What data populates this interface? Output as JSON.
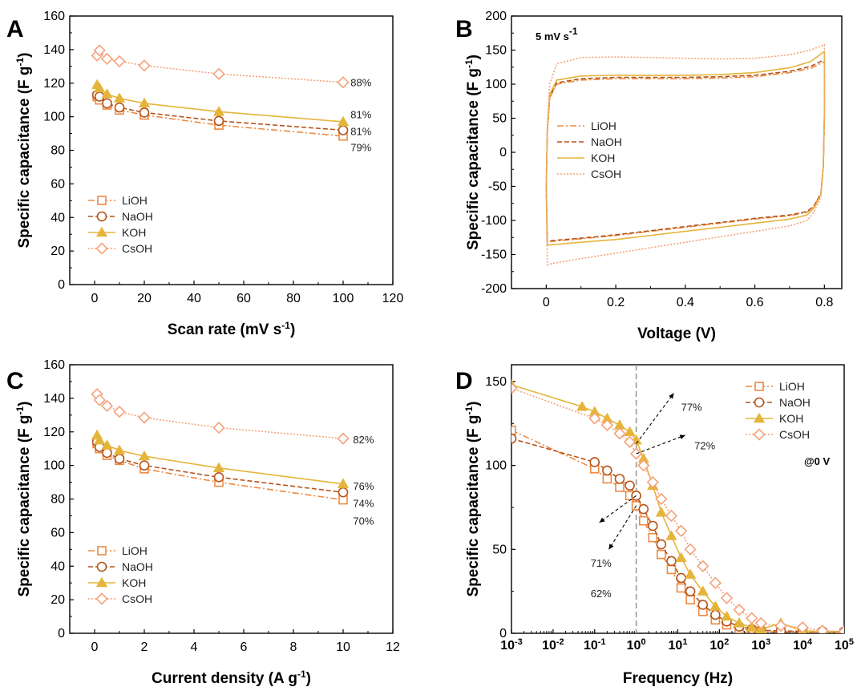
{
  "figure": {
    "colors": {
      "LiOH": "#ec8a42",
      "NaOH": "#b6541a",
      "KOH": "#e5b53b",
      "CsOH": "#f4a27a",
      "refline": "#999999",
      "axis": "#000000"
    }
  },
  "chart_data": [
    {
      "id": "A",
      "panel_label": "A",
      "type": "line",
      "xlabel": "Scan rate (mV s",
      "xlabel_sup": "-1",
      "xlabel_end": ")",
      "ylabel": "Specific capacitance (F g",
      "ylabel_sup": "-1",
      "ylabel_end": ")",
      "xlim": [
        -10,
        120
      ],
      "ylim": [
        0,
        160
      ],
      "xticks": [
        0,
        20,
        40,
        60,
        80,
        100,
        120
      ],
      "yticks": [
        0,
        20,
        40,
        60,
        80,
        100,
        120,
        140,
        160
      ],
      "legend": "bottom-left",
      "series": [
        {
          "name": "LiOH",
          "marker": "square",
          "dash": "dashdot",
          "x": [
            1,
            2,
            5,
            10,
            20,
            50,
            100
          ],
          "y": [
            112,
            110,
            107,
            104,
            101,
            95,
            88.5
          ]
        },
        {
          "name": "NaOH",
          "marker": "circle",
          "dash": "dashed",
          "x": [
            1,
            2,
            5,
            10,
            20,
            50,
            100
          ],
          "y": [
            113,
            112,
            108,
            105.5,
            102.5,
            97.5,
            92
          ]
        },
        {
          "name": "KOH",
          "marker": "triangle",
          "dash": "solid",
          "x": [
            1,
            2,
            5,
            10,
            20,
            50,
            100
          ],
          "y": [
            119,
            117,
            113.5,
            111,
            108,
            103,
            97
          ]
        },
        {
          "name": "CsOH",
          "marker": "diamond",
          "dash": "dotted",
          "x": [
            1,
            2,
            5,
            10,
            20,
            50,
            100
          ],
          "y": [
            136.5,
            139.5,
            134.5,
            133,
            130.5,
            125.5,
            120.5
          ]
        }
      ],
      "annotations": [
        {
          "text": "88%",
          "x": 103,
          "y": 120.5
        },
        {
          "text": "81%",
          "x": 103,
          "y": 101.5
        },
        {
          "text": "81%",
          "x": 103,
          "y": 91.5
        },
        {
          "text": "79%",
          "x": 103,
          "y": 82
        }
      ]
    },
    {
      "id": "B",
      "panel_label": "B",
      "type": "line",
      "xlabel": "Voltage (V)",
      "ylabel": "Specific capacitance (F g",
      "ylabel_sup": "-1",
      "ylabel_end": ")",
      "xlim": [
        -0.1,
        0.85
      ],
      "ylim": [
        -200,
        200
      ],
      "xticks": [
        0.0,
        0.2,
        0.4,
        0.6,
        0.8
      ],
      "xticklabels": [
        "0",
        "0.2",
        "0.4",
        "0.6",
        "0.8"
      ],
      "yticks": [
        -200,
        -150,
        -100,
        -50,
        0,
        50,
        100,
        150,
        200
      ],
      "legend": "center-left",
      "note": "5 mV s",
      "note_sup": "-1",
      "series": [
        {
          "name": "LiOH",
          "dash": "dashdot",
          "x": [
            0,
            0.003,
            0.01,
            0.03,
            0.1,
            0.2,
            0.3,
            0.4,
            0.5,
            0.6,
            0.7,
            0.76,
            0.8,
            0.8,
            0.797,
            0.79,
            0.77,
            0.75,
            0.7,
            0.6,
            0.5,
            0.4,
            0.3,
            0.2,
            0.1,
            0.03,
            0.01,
            0.003,
            0
          ],
          "y": [
            -50,
            30,
            80,
            100,
            106,
            108,
            108,
            108,
            109,
            111,
            117,
            123,
            133,
            50,
            -20,
            -60,
            -80,
            -88,
            -93,
            -98,
            -104,
            -110,
            -116,
            -122,
            -127,
            -130,
            -131,
            -131,
            -50
          ]
        },
        {
          "name": "NaOH",
          "dash": "dashed",
          "x": [
            0,
            0.003,
            0.01,
            0.03,
            0.1,
            0.2,
            0.3,
            0.4,
            0.5,
            0.6,
            0.7,
            0.76,
            0.8,
            0.8,
            0.797,
            0.79,
            0.77,
            0.75,
            0.7,
            0.6,
            0.5,
            0.4,
            0.3,
            0.2,
            0.1,
            0.03,
            0.01,
            0.003,
            0
          ],
          "y": [
            -50,
            30,
            82,
            102,
            108,
            110,
            110,
            110,
            111,
            113,
            119,
            126,
            136,
            50,
            -20,
            -60,
            -79,
            -87,
            -92,
            -97,
            -103,
            -109,
            -115,
            -121,
            -126,
            -129,
            -130,
            -130,
            -50
          ]
        },
        {
          "name": "KOH",
          "dash": "solid",
          "x": [
            0,
            0.003,
            0.01,
            0.03,
            0.1,
            0.2,
            0.3,
            0.4,
            0.5,
            0.6,
            0.7,
            0.76,
            0.8,
            0.8,
            0.797,
            0.79,
            0.77,
            0.75,
            0.7,
            0.6,
            0.5,
            0.4,
            0.3,
            0.2,
            0.1,
            0.03,
            0.01,
            0.003,
            0
          ],
          "y": [
            -55,
            30,
            85,
            106,
            112,
            113,
            113,
            113,
            114,
            117,
            124,
            133,
            148,
            55,
            -20,
            -62,
            -82,
            -92,
            -98,
            -104,
            -110,
            -116,
            -122,
            -128,
            -132,
            -135,
            -136,
            -136,
            -55
          ]
        },
        {
          "name": "CsOH",
          "dash": "dotted",
          "x": [
            0,
            0.003,
            0.01,
            0.03,
            0.1,
            0.2,
            0.3,
            0.4,
            0.5,
            0.6,
            0.7,
            0.76,
            0.8,
            0.8,
            0.797,
            0.79,
            0.77,
            0.75,
            0.7,
            0.6,
            0.5,
            0.4,
            0.3,
            0.2,
            0.1,
            0.03,
            0.01,
            0.003,
            0
          ],
          "y": [
            -60,
            40,
            100,
            130,
            139,
            140,
            139,
            138,
            137,
            138,
            143,
            150,
            158,
            60,
            -20,
            -65,
            -88,
            -100,
            -108,
            -116,
            -124,
            -132,
            -140,
            -148,
            -156,
            -162,
            -164,
            -165,
            -60
          ]
        }
      ]
    },
    {
      "id": "C",
      "panel_label": "C",
      "type": "line",
      "xlabel": "Current density (A g",
      "xlabel_sup": "-1",
      "xlabel_end": ")",
      "ylabel": "Specific capacitance (F g",
      "ylabel_sup": "-1",
      "ylabel_end": ")",
      "xlim": [
        -1,
        12
      ],
      "ylim": [
        0,
        160
      ],
      "xticks": [
        0,
        2,
        4,
        6,
        8,
        10,
        12
      ],
      "yticks": [
        0,
        20,
        40,
        60,
        80,
        100,
        120,
        140,
        160
      ],
      "legend": "bottom-left",
      "series": [
        {
          "name": "LiOH",
          "marker": "square",
          "dash": "dashdot",
          "x": [
            0.1,
            0.2,
            0.5,
            1,
            2,
            5,
            10
          ],
          "y": [
            113,
            110,
            106,
            103,
            98,
            90,
            79.5
          ]
        },
        {
          "name": "NaOH",
          "marker": "circle",
          "dash": "dashed",
          "x": [
            0.1,
            0.2,
            0.5,
            1,
            2,
            5,
            10
          ],
          "y": [
            114,
            111,
            107.5,
            104,
            100,
            93,
            84
          ]
        },
        {
          "name": "KOH",
          "marker": "triangle",
          "dash": "solid",
          "x": [
            0.1,
            0.2,
            0.5,
            1,
            2,
            5,
            10
          ],
          "y": [
            118,
            115,
            112,
            109,
            105.5,
            98.5,
            89
          ]
        },
        {
          "name": "CsOH",
          "marker": "diamond",
          "dash": "dotted",
          "x": [
            0.1,
            0.2,
            0.5,
            1,
            2,
            5,
            10
          ],
          "y": [
            142.5,
            139,
            135.5,
            132,
            128.5,
            122.5,
            116
          ]
        }
      ],
      "annotations": [
        {
          "text": "82%",
          "x": 10.4,
          "y": 115.5
        },
        {
          "text": "76%",
          "x": 10.4,
          "y": 88
        },
        {
          "text": "74%",
          "x": 10.4,
          "y": 77.5
        },
        {
          "text": "70%",
          "x": 10.4,
          "y": 67
        }
      ]
    },
    {
      "id": "D",
      "panel_label": "D",
      "type": "scatter",
      "xlabel": "Frequency (Hz)",
      "ylabel": "Specific capacitance (F g",
      "ylabel_sup": "-1",
      "ylabel_end": ")",
      "xscale": "log",
      "xlim": [
        0.001,
        100000
      ],
      "ylim": [
        0,
        160
      ],
      "xtick_base": "10",
      "xtick_exponents": [
        "-3",
        "-2",
        "-1",
        "0",
        "1",
        "2",
        "3",
        "4",
        "5"
      ],
      "yticks": [
        0,
        50,
        100,
        150
      ],
      "legend": "top-right",
      "note": "@0 V",
      "reference_line_x": 1,
      "series": [
        {
          "name": "LiOH",
          "marker": "square",
          "dash": "dashdot",
          "x": [
            0.001,
            0.1,
            0.2,
            0.4,
            0.7,
            1,
            1.5,
            2.5,
            4,
            7,
            12,
            20,
            40,
            80,
            150,
            300,
            600,
            1000,
            3000,
            10000,
            30000,
            100000
          ],
          "y": [
            121,
            98,
            92,
            87,
            82,
            76,
            67,
            57,
            47,
            38,
            27,
            20,
            13,
            8,
            5,
            2.5,
            1.5,
            1,
            0.8,
            0.6,
            0.5,
            0.4
          ]
        },
        {
          "name": "NaOH",
          "marker": "circle",
          "dash": "dashed",
          "x": [
            0.001,
            0.1,
            0.2,
            0.4,
            0.7,
            1,
            1.5,
            2.5,
            4,
            7,
            12,
            20,
            40,
            80,
            150,
            300,
            600,
            1000,
            3000,
            10000,
            30000,
            100000
          ],
          "y": [
            116,
            102,
            97,
            92,
            88,
            82,
            74,
            64,
            53,
            43,
            33,
            25,
            17,
            11,
            7,
            4,
            2.5,
            1.8,
            1.4,
            1.2,
            1.2,
            1
          ]
        },
        {
          "name": "KOH",
          "marker": "triangle",
          "dash": "solid",
          "x": [
            0.001,
            0.05,
            0.1,
            0.2,
            0.4,
            0.7,
            1,
            1.5,
            2.5,
            4,
            7,
            12,
            20,
            40,
            80,
            150,
            300,
            600,
            1000,
            3000,
            10000,
            30000,
            100000
          ],
          "y": [
            148,
            135,
            132,
            128,
            124,
            120,
            115,
            104,
            88,
            72,
            58,
            45,
            35,
            25,
            16,
            10,
            6,
            3.5,
            2.5,
            6,
            1.5,
            1,
            0.8
          ]
        },
        {
          "name": "CsOH",
          "marker": "diamond",
          "dash": "dotted",
          "x": [
            0.001,
            0.1,
            0.2,
            0.4,
            0.7,
            1,
            1.5,
            2.5,
            4,
            7,
            12,
            20,
            40,
            80,
            150,
            300,
            600,
            1000,
            3000,
            10000,
            30000,
            100000
          ],
          "y": [
            146,
            128,
            124,
            119,
            114,
            107,
            100,
            90,
            80,
            70,
            61,
            50,
            40,
            30,
            21,
            14,
            9,
            6,
            4.5,
            3.5,
            1.5,
            1
          ]
        }
      ],
      "annotations": [
        {
          "text": "77%",
          "x": 12,
          "y": 135
        },
        {
          "text": "72%",
          "x": 25,
          "y": 112
        },
        {
          "text": "71%",
          "x": 0.08,
          "y": 42
        },
        {
          "text": "62%",
          "x": 0.08,
          "y": 24
        }
      ],
      "arrows": [
        {
          "from": [
            1,
            113
          ],
          "to": [
            8,
            143
          ]
        },
        {
          "from": [
            1,
            107
          ],
          "to": [
            15,
            118
          ]
        },
        {
          "from": [
            1,
            82
          ],
          "to": [
            0.13,
            66
          ]
        },
        {
          "from": [
            1,
            76
          ],
          "to": [
            0.22,
            50
          ]
        }
      ]
    }
  ]
}
